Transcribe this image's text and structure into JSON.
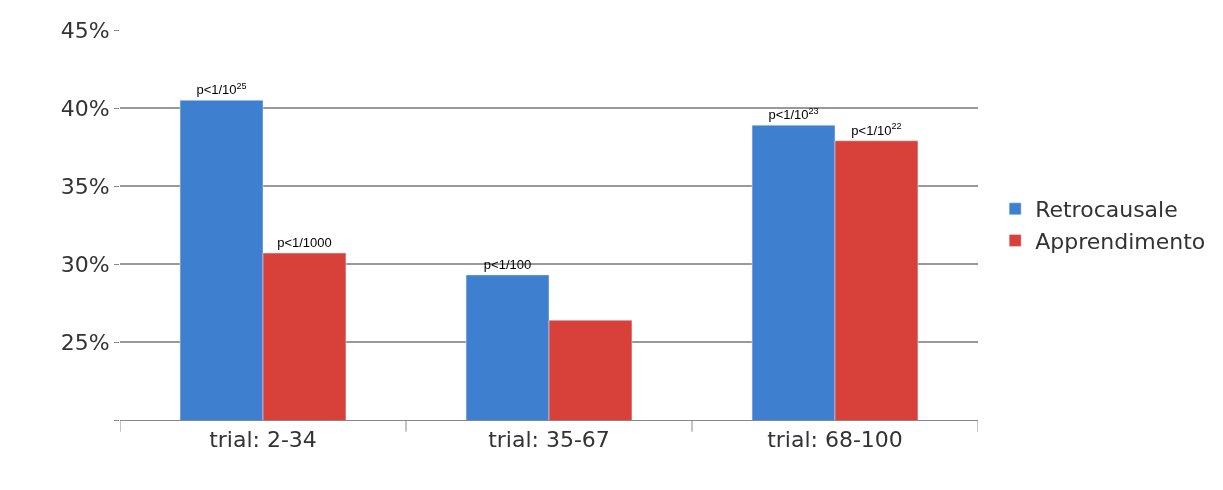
{
  "chart_data": {
    "type": "bar",
    "categories": [
      "trial: 2-34",
      "trial: 35-67",
      "trial: 68-100"
    ],
    "series": [
      {
        "name": "Retrocausale",
        "color": "#3f7fd0",
        "values": [
          40.5,
          29.3,
          38.9
        ],
        "value_labels": [
          "p<1/10$^{25}$",
          "p<1/100",
          "p<1/10$^{23}$"
        ]
      },
      {
        "name": "Apprendimento",
        "color": "#d8403a",
        "values": [
          30.7,
          26.4,
          37.9
        ],
        "value_labels": [
          "p<1/1000",
          null,
          "p<1/10$^{22}$"
        ]
      }
    ],
    "ylim": [
      20,
      45
    ],
    "yticks": [
      {
        "value": 20,
        "label": null
      },
      {
        "value": 25,
        "label": "25%"
      },
      {
        "value": 30,
        "label": "30%"
      },
      {
        "value": 35,
        "label": "35%"
      },
      {
        "value": 40,
        "label": "40%"
      },
      {
        "value": 45,
        "label": "45%"
      }
    ],
    "grid": "y",
    "legend": "right"
  }
}
